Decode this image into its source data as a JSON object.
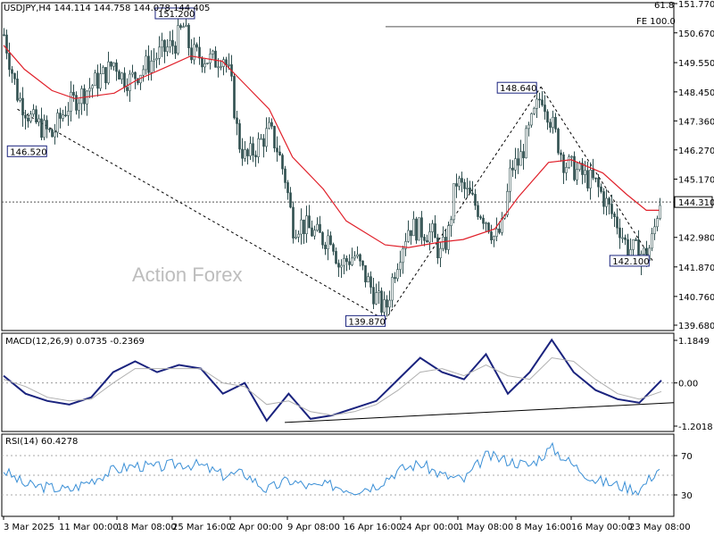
{
  "header": {
    "main": "USDJPY,H4  144.114 144.758 144.078 144.405",
    "macd": "MACD(12,26,9) 0.0735 -0.2369",
    "rsi": "RSI(14) 60.4278"
  },
  "watermark": "Action Forex",
  "colors": {
    "candles": "#2f4f4f",
    "ma": "#e0202a",
    "macd_line": "#1a237e",
    "macd_signal": "#b0b0b0",
    "rsi": "#3a8fd6",
    "trendlines": "#000000",
    "grid": "#9a9a9a"
  },
  "chart_data": [
    {
      "type": "candlestick",
      "symbol": "USDJPY",
      "timeframe": "H4",
      "title": "USDJPY,H4",
      "ohlc_last": {
        "open": 144.114,
        "high": 144.758,
        "low": 144.078,
        "close": 144.405
      },
      "ylim": [
        139.68,
        151.77
      ],
      "y_ticks": [
        "151.770",
        "150.670",
        "149.550",
        "148.450",
        "147.360",
        "146.270",
        "145.170",
        "144.310",
        "142.980",
        "141.870",
        "140.760",
        "139.680"
      ],
      "x_ticks": [
        "3 Mar 2025",
        "11 Mar 00:00",
        "18 Mar 08:00",
        "25 Mar 16:00",
        "2 Apr 00:00",
        "9 Apr 08:00",
        "16 Apr 16:00",
        "24 Apr 00:00",
        "1 May 08:00",
        "8 May 16:00",
        "16 May 00:00",
        "23 May 08:00"
      ],
      "close_path": [
        {
          "x": "3 Mar 2025",
          "y": 150.6
        },
        {
          "x": "4 Mar 2025",
          "y": 149.4
        },
        {
          "x": "5 Mar 2025",
          "y": 148.3
        },
        {
          "x": "7 Mar 2025",
          "y": 147.4
        },
        {
          "x": "10 Mar 2025",
          "y": 146.8
        },
        {
          "x": "11 Mar 2025",
          "y": 147.4
        },
        {
          "x": "12 Mar 2025",
          "y": 147.9
        },
        {
          "x": "14 Mar 2025",
          "y": 148.4
        },
        {
          "x": "17 Mar 2025",
          "y": 149.2
        },
        {
          "x": "18 Mar 2025",
          "y": 149.6
        },
        {
          "x": "19 Mar 2025",
          "y": 149.0
        },
        {
          "x": "20 Mar 2025",
          "y": 148.9
        },
        {
          "x": "24 Mar 2025",
          "y": 149.9
        },
        {
          "x": "26 Mar 2025",
          "y": 150.3
        },
        {
          "x": "27 Mar 2025",
          "y": 150.9
        },
        {
          "x": "28 Mar 2025",
          "y": 149.9
        },
        {
          "x": "31 Mar 2025",
          "y": 149.6
        },
        {
          "x": "1 Apr 2025",
          "y": 149.9
        },
        {
          "x": "2 Apr 2025",
          "y": 148.9
        },
        {
          "x": "3 Apr 2025",
          "y": 146.6
        },
        {
          "x": "4 Apr 2025",
          "y": 145.9
        },
        {
          "x": "7 Apr 2025",
          "y": 147.0
        },
        {
          "x": "8 Apr 2025",
          "y": 146.3
        },
        {
          "x": "9 Apr 2025",
          "y": 145.2
        },
        {
          "x": "10 Apr 2025",
          "y": 143.4
        },
        {
          "x": "11 Apr 2025",
          "y": 143.5
        },
        {
          "x": "14 Apr 2025",
          "y": 142.9
        },
        {
          "x": "15 Apr 2025",
          "y": 143.1
        },
        {
          "x": "16 Apr 2025",
          "y": 141.9
        },
        {
          "x": "18 Apr 2025",
          "y": 142.3
        },
        {
          "x": "21 Apr 2025",
          "y": 140.6
        },
        {
          "x": "22 Apr 2025",
          "y": 140.2
        },
        {
          "x": "23 Apr 2025",
          "y": 141.6
        },
        {
          "x": "24 Apr 2025",
          "y": 142.6
        },
        {
          "x": "25 Apr 2025",
          "y": 143.4
        },
        {
          "x": "28 Apr 2025",
          "y": 143.1
        },
        {
          "x": "29 Apr 2025",
          "y": 142.3
        },
        {
          "x": "30 Apr 2025",
          "y": 143.0
        },
        {
          "x": "1 May 2025",
          "y": 145.1
        },
        {
          "x": "2 May 2025",
          "y": 144.8
        },
        {
          "x": "5 May 2025",
          "y": 143.6
        },
        {
          "x": "6 May 2025",
          "y": 142.9
        },
        {
          "x": "7 May 2025",
          "y": 143.4
        },
        {
          "x": "8 May 2025",
          "y": 145.6
        },
        {
          "x": "9 May 2025",
          "y": 145.8
        },
        {
          "x": "12 May 2025",
          "y": 148.4
        },
        {
          "x": "13 May 2025",
          "y": 147.6
        },
        {
          "x": "14 May 2025",
          "y": 146.7
        },
        {
          "x": "15 May 2025",
          "y": 145.8
        },
        {
          "x": "16 May 2025",
          "y": 145.6
        },
        {
          "x": "19 May 2025",
          "y": 145.0
        },
        {
          "x": "20 May 2025",
          "y": 144.5
        },
        {
          "x": "21 May 2025",
          "y": 143.9
        },
        {
          "x": "22 May 2025",
          "y": 143.4
        },
        {
          "x": "23 May 2025",
          "y": 142.6
        },
        {
          "x": "26 May 2025",
          "y": 142.3
        },
        {
          "x": "27 May 2025",
          "y": 143.0
        },
        {
          "x": "28 May 2025",
          "y": 144.4
        }
      ],
      "ma_path": [
        {
          "x": "3 Mar 2025",
          "y": 150.2
        },
        {
          "x": "6 Mar 2025",
          "y": 149.3
        },
        {
          "x": "10 Mar 2025",
          "y": 148.5
        },
        {
          "x": "13 Mar 2025",
          "y": 148.2
        },
        {
          "x": "18 Mar 2025",
          "y": 148.4
        },
        {
          "x": "21 Mar 2025",
          "y": 148.9
        },
        {
          "x": "25 Mar 2025",
          "y": 149.4
        },
        {
          "x": "28 Mar 2025",
          "y": 149.8
        },
        {
          "x": "1 Apr 2025",
          "y": 149.6
        },
        {
          "x": "3 Apr 2025",
          "y": 149.0
        },
        {
          "x": "7 Apr 2025",
          "y": 147.8
        },
        {
          "x": "10 Apr 2025",
          "y": 146.0
        },
        {
          "x": "14 Apr 2025",
          "y": 144.8
        },
        {
          "x": "17 Apr 2025",
          "y": 143.6
        },
        {
          "x": "22 Apr 2025",
          "y": 142.7
        },
        {
          "x": "25 Apr 2025",
          "y": 142.6
        },
        {
          "x": "29 Apr 2025",
          "y": 142.8
        },
        {
          "x": "2 May 2025",
          "y": 142.9
        },
        {
          "x": "6 May 2025",
          "y": 143.3
        },
        {
          "x": "9 May 2025",
          "y": 144.5
        },
        {
          "x": "13 May 2025",
          "y": 145.8
        },
        {
          "x": "16 May 2025",
          "y": 145.9
        },
        {
          "x": "20 May 2025",
          "y": 145.4
        },
        {
          "x": "23 May 2025",
          "y": 144.6
        },
        {
          "x": "26 May 2025",
          "y": 144.0
        },
        {
          "x": "28 May 2025",
          "y": 144.0
        }
      ],
      "annotations": [
        {
          "text": "151.200",
          "x": "26 Mar 2025",
          "y": 151.2
        },
        {
          "text": "146.520",
          "x": "10 Mar 2025",
          "y": 146.52
        },
        {
          "text": "139.870",
          "x": "22 Apr 2025",
          "y": 139.87
        },
        {
          "text": "148.640",
          "x": "12 May 2025",
          "y": 148.64
        },
        {
          "text": "142.100",
          "x": "27 May 2025",
          "y": 142.1
        },
        {
          "text": "FE 100.0",
          "x": "28 May 2025",
          "y": 150.9
        },
        {
          "text": "61.8",
          "x": "28 May 2025",
          "y": 151.9
        },
        {
          "text": "144.310",
          "x": "28 May 2025",
          "y": 144.31
        }
      ],
      "reference_lines": [
        {
          "type": "horizontal",
          "y": 144.31,
          "style": "dotted"
        },
        {
          "type": "horizontal",
          "y": 150.9,
          "style": "solid",
          "label": "FE 100.0"
        }
      ],
      "trend_lines": [
        {
          "from": {
            "x": "5 Mar 2025",
            "y": 147.8
          },
          "to": {
            "x": "22 Apr 2025",
            "y": 139.87
          }
        },
        {
          "from": {
            "x": "22 Apr 2025",
            "y": 139.87
          },
          "to": {
            "x": "12 May 2025",
            "y": 148.64
          }
        },
        {
          "from": {
            "x": "12 May 2025",
            "y": 148.64
          },
          "to": {
            "x": "27 May 2025",
            "y": 142.1
          }
        }
      ],
      "grid": false
    },
    {
      "type": "line",
      "title": "MACD(12,26,9)",
      "last_values": {
        "macd": 0.0735,
        "signal": -0.2369
      },
      "ylim": [
        -1.2018,
        1.1849
      ],
      "y_ticks": [
        "1.1849",
        "0.00",
        "-1.2018"
      ],
      "series": [
        {
          "name": "MACD",
          "values": [
            0.2,
            -0.3,
            -0.5,
            -0.6,
            -0.4,
            0.3,
            0.6,
            0.3,
            0.5,
            0.4,
            -0.3,
            0.0,
            -1.05,
            -0.3,
            -1.0,
            -0.9,
            -0.7,
            -0.5,
            0.1,
            0.7,
            0.3,
            0.1,
            0.8,
            -0.3,
            0.3,
            1.2,
            0.3,
            -0.2,
            -0.45,
            -0.55,
            0.07
          ]
        },
        {
          "name": "Signal",
          "values": [
            0.1,
            -0.1,
            -0.4,
            -0.5,
            -0.45,
            0.0,
            0.4,
            0.4,
            0.4,
            0.4,
            0.0,
            -0.1,
            -0.6,
            -0.5,
            -0.8,
            -0.9,
            -0.8,
            -0.6,
            -0.2,
            0.3,
            0.4,
            0.2,
            0.5,
            0.2,
            0.1,
            0.7,
            0.6,
            0.1,
            -0.3,
            -0.45,
            -0.24
          ]
        }
      ],
      "trend_line": {
        "from": {
          "x": "9 Apr 2025",
          "y": -1.1
        },
        "to": {
          "x": "28 May 2025",
          "y": -0.55
        }
      }
    },
    {
      "type": "line",
      "title": "RSI(14)",
      "last_value": 60.4278,
      "ylim": [
        10,
        90
      ],
      "y_ticks": [
        "70",
        "30"
      ],
      "levels": [
        70,
        50,
        30
      ],
      "series": [
        {
          "name": "RSI",
          "values": [
            55,
            40,
            38,
            35,
            45,
            55,
            60,
            58,
            62,
            60,
            50,
            52,
            35,
            45,
            38,
            40,
            35,
            40,
            55,
            62,
            50,
            45,
            70,
            65,
            60,
            78,
            60,
            45,
            40,
            35,
            60
          ]
        }
      ]
    }
  ]
}
